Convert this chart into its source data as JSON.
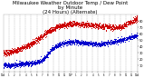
{
  "title": "Milwaukee Weather Outdoor Temp / Dew Point\nby Minute\n(24 Hours) (Alternate)",
  "title_fontsize": 4.0,
  "background_color": "#ffffff",
  "plot_bg_color": "#ffffff",
  "grid_color": "#aaaaaa",
  "red_color": "#cc0000",
  "blue_color": "#0000cc",
  "text_color": "#000000",
  "tick_color": "#000000",
  "ylim": [
    0,
    90
  ],
  "xlim": [
    0,
    1440
  ],
  "yticks": [
    10,
    20,
    30,
    40,
    50,
    60,
    70,
    80
  ],
  "ytick_labels": [
    "10",
    "20",
    "30",
    "40",
    "50",
    "60",
    "70",
    "80"
  ],
  "xtick_positions": [
    0,
    60,
    120,
    180,
    240,
    300,
    360,
    420,
    480,
    540,
    600,
    660,
    720,
    780,
    840,
    900,
    960,
    1020,
    1080,
    1140,
    1200,
    1260,
    1320,
    1380,
    1440
  ],
  "xtick_labels": [
    "12A",
    "1",
    "2",
    "3",
    "4",
    "5",
    "6",
    "7",
    "8",
    "9",
    "10",
    "11",
    "12P",
    "1",
    "2",
    "3",
    "4",
    "5",
    "6",
    "7",
    "8",
    "9",
    "10",
    "11",
    "12A"
  ],
  "n_points": 1440,
  "marker_size": 0.5,
  "red_control": [
    [
      0,
      30
    ],
    [
      60,
      30
    ],
    [
      120,
      33
    ],
    [
      180,
      36
    ],
    [
      240,
      40
    ],
    [
      300,
      44
    ],
    [
      360,
      50
    ],
    [
      420,
      57
    ],
    [
      480,
      64
    ],
    [
      540,
      68
    ],
    [
      600,
      72
    ],
    [
      660,
      74
    ],
    [
      720,
      76
    ],
    [
      780,
      76
    ],
    [
      840,
      75
    ],
    [
      900,
      74
    ],
    [
      960,
      73
    ],
    [
      1020,
      72
    ],
    [
      1080,
      72
    ],
    [
      1140,
      71
    ],
    [
      1200,
      70
    ],
    [
      1260,
      70
    ],
    [
      1320,
      75
    ],
    [
      1380,
      80
    ],
    [
      1440,
      82
    ]
  ],
  "blue_control": [
    [
      0,
      10
    ],
    [
      60,
      10
    ],
    [
      120,
      11
    ],
    [
      180,
      12
    ],
    [
      240,
      13
    ],
    [
      300,
      14
    ],
    [
      360,
      15
    ],
    [
      420,
      18
    ],
    [
      480,
      28
    ],
    [
      540,
      38
    ],
    [
      600,
      43
    ],
    [
      660,
      45
    ],
    [
      720,
      47
    ],
    [
      780,
      47
    ],
    [
      840,
      46
    ],
    [
      900,
      45
    ],
    [
      960,
      44
    ],
    [
      1020,
      43
    ],
    [
      1080,
      44
    ],
    [
      1140,
      46
    ],
    [
      1200,
      48
    ],
    [
      1260,
      50
    ],
    [
      1320,
      52
    ],
    [
      1380,
      55
    ],
    [
      1440,
      58
    ]
  ]
}
